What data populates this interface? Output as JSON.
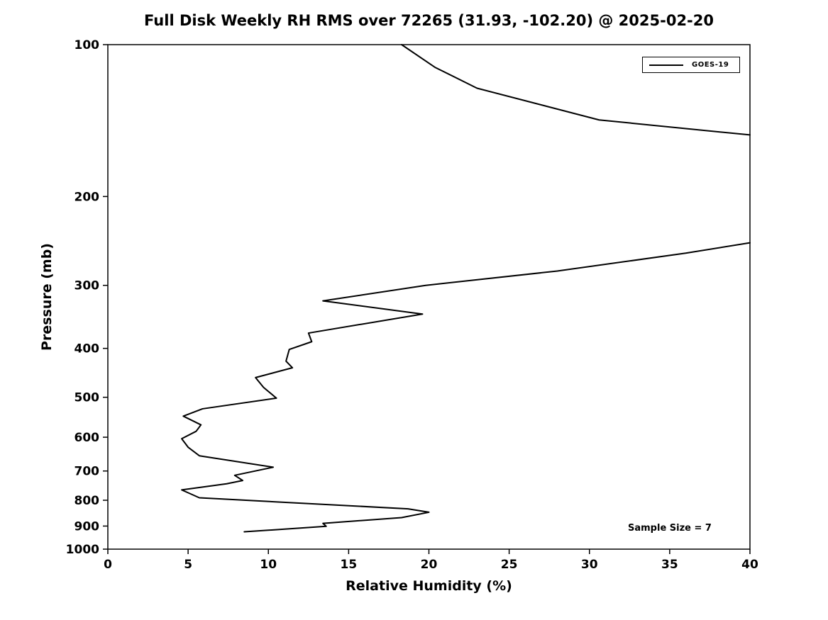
{
  "chart_data": {
    "type": "line",
    "title": "Full Disk Weekly RH RMS over 72265 (31.93, -102.20) @ 2025-02-20",
    "xlabel": "Relative Humidity (%)",
    "ylabel": "Pressure (mb)",
    "xlim": [
      0,
      40
    ],
    "ylim": [
      100,
      1000
    ],
    "yscale": "log",
    "y_inverted": true,
    "grid": false,
    "xticks": [
      0,
      5,
      10,
      15,
      20,
      25,
      30,
      35,
      40
    ],
    "yticks": [
      100,
      200,
      300,
      400,
      500,
      600,
      700,
      800,
      900,
      1000
    ],
    "legend_position": "top-right",
    "annotation": "Sample Size = 7",
    "series": [
      {
        "name": "GOES-19",
        "color": "#000000",
        "line_width": 2,
        "segments": [
          [
            [
              18.3,
              100
            ],
            [
              20.4,
              111
            ],
            [
              23.0,
              122
            ],
            [
              30.6,
              141
            ],
            [
              40.0,
              151
            ]
          ],
          [
            [
              40.0,
              247
            ],
            [
              36.0,
              259
            ],
            [
              28.0,
              281
            ],
            [
              19.8,
              300
            ],
            [
              13.4,
              322
            ],
            [
              19.6,
              342
            ],
            [
              12.5,
              373
            ],
            [
              12.7,
              388
            ],
            [
              11.3,
              402
            ],
            [
              11.1,
              424
            ],
            [
              11.5,
              437
            ],
            [
              9.2,
              457
            ],
            [
              9.7,
              478
            ],
            [
              10.5,
              502
            ],
            [
              5.9,
              527
            ],
            [
              4.7,
              545
            ],
            [
              5.8,
              567
            ],
            [
              5.5,
              584
            ],
            [
              4.6,
              604
            ],
            [
              5.0,
              628
            ],
            [
              5.7,
              653
            ],
            [
              10.3,
              688
            ],
            [
              7.9,
              714
            ],
            [
              8.4,
              731
            ],
            [
              7.4,
              742
            ],
            [
              4.6,
              763
            ],
            [
              5.7,
              791
            ],
            [
              18.7,
              832
            ],
            [
              20.0,
              845
            ],
            [
              18.3,
              866
            ],
            [
              13.4,
              889
            ],
            [
              13.6,
              901
            ],
            [
              8.5,
              924
            ]
          ]
        ]
      }
    ]
  }
}
